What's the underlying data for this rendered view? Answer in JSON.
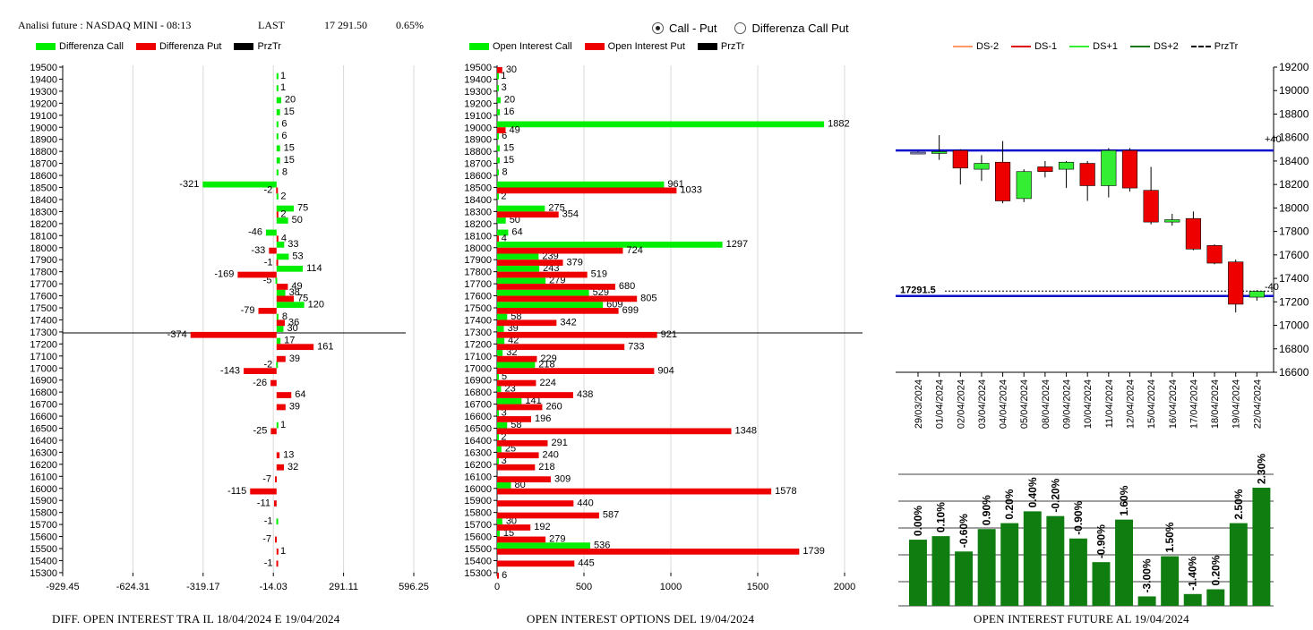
{
  "header": {
    "title": "Analisi future : NASDAQ MINI - 08:13",
    "last_label": "LAST",
    "last_value": "17 291.50",
    "change": "0.65%"
  },
  "mode": {
    "options": [
      "Call - Put",
      "Differenza Call Put"
    ],
    "selected": "Call - Put"
  },
  "legends": {
    "left": [
      {
        "label": "Differenza Call",
        "color": "#00ee00"
      },
      {
        "label": "Differenza Put",
        "color": "#ee0000"
      },
      {
        "label": "PrzTr",
        "color": "#000000"
      }
    ],
    "middle": [
      {
        "label": "Open Interest Call",
        "color": "#00ee00"
      },
      {
        "label": "Open Interest Put",
        "color": "#ee0000"
      },
      {
        "label": "PrzTr",
        "color": "#000000"
      }
    ],
    "right": [
      {
        "label": "DS-2",
        "color": "#ff9966",
        "style": "solid"
      },
      {
        "label": "DS-1",
        "color": "#dd0000",
        "style": "solid"
      },
      {
        "label": "DS+1",
        "color": "#33ee33",
        "style": "solid"
      },
      {
        "label": "DS+2",
        "color": "#117711",
        "style": "solid"
      },
      {
        "label": "PrzTr",
        "color": "#000000",
        "style": "dashed"
      }
    ]
  },
  "footers": {
    "left": "DIFF. OPEN INTEREST TRA IL 18/04/2024 E 19/04/2024",
    "middle": "OPEN INTEREST OPTIONS DEL 19/04/2024",
    "right": "OPEN INTEREST FUTURE AL 19/04/2024"
  },
  "chart_data": [
    {
      "type": "bar",
      "orientation": "horizontal",
      "strikes": [
        19500,
        19400,
        19300,
        19200,
        19100,
        19000,
        18900,
        18800,
        18700,
        18600,
        18500,
        18400,
        18300,
        18200,
        18100,
        18000,
        17900,
        17800,
        17700,
        17600,
        17500,
        17400,
        17300,
        17200,
        17100,
        17000,
        16900,
        16800,
        16700,
        16600,
        16500,
        16400,
        16300,
        16200,
        16100,
        16000,
        15900,
        15800,
        15700,
        15600,
        15500,
        15400,
        15300
      ],
      "series": [
        {
          "name": "Differenza Call",
          "color": "#00ee00",
          "values": [
            0,
            1,
            1,
            20,
            15,
            6,
            6,
            15,
            15,
            8,
            -321,
            2,
            75,
            50,
            -46,
            33,
            53,
            114,
            -5,
            38,
            120,
            8,
            30,
            17,
            0,
            -2,
            0,
            0,
            0,
            0,
            1,
            0,
            0,
            0,
            0,
            0,
            0,
            0,
            -1,
            0,
            0,
            0,
            0
          ]
        },
        {
          "name": "Differenza Put",
          "color": "#ee0000",
          "values": [
            0,
            0,
            0,
            0,
            0,
            0,
            0,
            0,
            0,
            0,
            -2,
            0,
            2,
            0,
            4,
            -33,
            -1,
            -169,
            49,
            75,
            -79,
            36,
            -374,
            161,
            39,
            -143,
            -26,
            64,
            39,
            0,
            -25,
            0,
            13,
            32,
            -7,
            -115,
            -11,
            0,
            0,
            -7,
            1,
            -1,
            0
          ]
        }
      ],
      "price_level": 17291.5,
      "xticks": [
        "-929.45",
        "-624.31",
        "-319.17",
        "-14.03",
        "291.11",
        "596.25"
      ],
      "xlim": [
        -929.45,
        596.25
      ],
      "grid": "vertical"
    },
    {
      "type": "bar",
      "orientation": "horizontal",
      "strikes": [
        19500,
        19400,
        19300,
        19200,
        19100,
        19000,
        18900,
        18800,
        18700,
        18600,
        18500,
        18400,
        18300,
        18200,
        18100,
        18000,
        17900,
        17800,
        17700,
        17600,
        17500,
        17400,
        17300,
        17200,
        17100,
        17000,
        16900,
        16800,
        16700,
        16600,
        16500,
        16400,
        16300,
        16200,
        16100,
        16000,
        15900,
        15800,
        15700,
        15600,
        15500,
        15400,
        15300
      ],
      "series": [
        {
          "name": "Open Interest Call",
          "color": "#00ee00",
          "values": [
            0,
            1,
            3,
            20,
            16,
            1882,
            6,
            15,
            15,
            8,
            961,
            2,
            275,
            50,
            64,
            1297,
            239,
            243,
            279,
            529,
            609,
            58,
            39,
            42,
            32,
            218,
            5,
            23,
            141,
            3,
            58,
            2,
            25,
            3,
            0,
            80,
            0,
            0,
            30,
            15,
            536,
            0,
            0
          ]
        },
        {
          "name": "Open Interest Put",
          "color": "#ee0000",
          "values": [
            30,
            0,
            0,
            0,
            0,
            49,
            0,
            0,
            0,
            0,
            1033,
            0,
            354,
            0,
            4,
            724,
            379,
            519,
            680,
            805,
            699,
            342,
            921,
            733,
            229,
            904,
            224,
            438,
            260,
            196,
            1348,
            291,
            240,
            218,
            309,
            1578,
            440,
            587,
            192,
            279,
            1739,
            445,
            6
          ]
        }
      ],
      "price_level": 17291.5,
      "xticks": [
        "0",
        "500",
        "1000",
        "1500",
        "2000"
      ],
      "xlim": [
        0,
        2000
      ],
      "grid": "vertical"
    },
    {
      "type": "candlestick",
      "dates": [
        "29/03/2024",
        "01/04/2024",
        "02/04/2024",
        "03/04/2024",
        "04/04/2024",
        "05/04/2024",
        "08/04/2024",
        "09/04/2024",
        "10/04/2024",
        "11/04/2024",
        "12/04/2024",
        "15/04/2024",
        "16/04/2024",
        "17/04/2024",
        "18/04/2024",
        "19/04/2024",
        "22/04/2024"
      ],
      "candles": [
        {
          "o": 18475,
          "h": 18480,
          "l": 18470,
          "c": 18475
        },
        {
          "o": 18480,
          "h": 18620,
          "l": 18410,
          "c": 18480
        },
        {
          "o": 18490,
          "h": 18500,
          "l": 18200,
          "c": 18340
        },
        {
          "o": 18330,
          "h": 18450,
          "l": 18230,
          "c": 18380
        },
        {
          "o": 18390,
          "h": 18570,
          "l": 18040,
          "c": 18060
        },
        {
          "o": 18080,
          "h": 18330,
          "l": 18050,
          "c": 18310
        },
        {
          "o": 18350,
          "h": 18400,
          "l": 18260,
          "c": 18310
        },
        {
          "o": 18330,
          "h": 18400,
          "l": 18170,
          "c": 18390
        },
        {
          "o": 18380,
          "h": 18400,
          "l": 18060,
          "c": 18190
        },
        {
          "o": 18190,
          "h": 18510,
          "l": 18090,
          "c": 18490
        },
        {
          "o": 18490,
          "h": 18510,
          "l": 18140,
          "c": 18170
        },
        {
          "o": 18150,
          "h": 18350,
          "l": 17860,
          "c": 17880
        },
        {
          "o": 17880,
          "h": 17950,
          "l": 17850,
          "c": 17900
        },
        {
          "o": 17910,
          "h": 17970,
          "l": 17640,
          "c": 17650
        },
        {
          "o": 17680,
          "h": 17690,
          "l": 17520,
          "c": 17530
        },
        {
          "o": 17540,
          "h": 17560,
          "l": 17110,
          "c": 17180
        },
        {
          "o": 17240,
          "h": 17300,
          "l": 17210,
          "c": 17290
        }
      ],
      "ylim": [
        16600,
        19200
      ],
      "yticks": [
        16600,
        16800,
        17000,
        17200,
        17400,
        17600,
        17800,
        18000,
        18200,
        18400,
        18600,
        18800,
        19000,
        19200
      ],
      "hlines": [
        18490,
        17250
      ],
      "price_level": 17291.5,
      "price_label": "17291.5",
      "side_labels": [
        "+40",
        "-40"
      ]
    },
    {
      "type": "bar",
      "categories": [
        "29/03/2024",
        "01/04/2024",
        "02/04/2024",
        "03/04/2024",
        "04/04/2024",
        "05/04/2024",
        "08/04/2024",
        "09/04/2024",
        "10/04/2024",
        "11/04/2024",
        "12/04/2024",
        "15/04/2024",
        "16/04/2024",
        "17/04/2024",
        "18/04/2024",
        "19/04/2024"
      ],
      "labels": [
        "0.00%",
        "0.10%",
        "-0.60%",
        "0.90%",
        "0.20%",
        "0.40%",
        "-0.20%",
        "-0.90%",
        "-0.90%",
        "1.60%",
        "-3.00%",
        "1.50%",
        "-1.40%",
        "0.20%",
        "2.50%",
        "2.30%"
      ],
      "values": [
        0.0,
        0.1,
        -0.6,
        0.9,
        0.2,
        0.4,
        -0.2,
        -0.9,
        -0.9,
        1.6,
        -3.0,
        1.5,
        -1.4,
        0.2,
        2.5,
        2.3
      ],
      "bar_level": [
        0.56,
        0.59,
        0.46,
        0.65,
        0.7,
        0.8,
        0.76,
        0.57,
        0.37,
        0.73,
        0.08,
        0.42,
        0.1,
        0.14,
        0.7,
        1.0
      ],
      "color": "#0f7d0f",
      "grid": "horizontal"
    }
  ]
}
